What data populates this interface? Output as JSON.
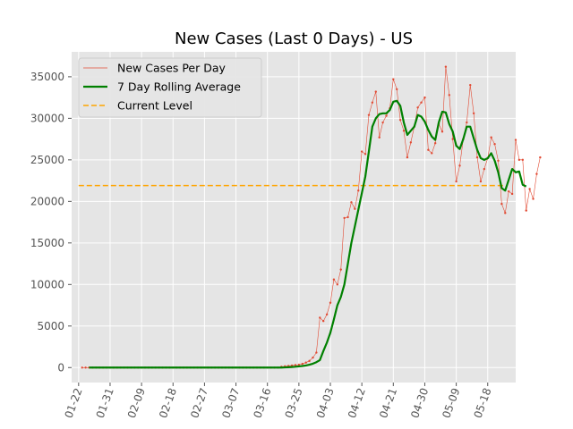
{
  "chart_data": {
    "type": "line",
    "title": "New Cases (Last 0 Days) - US",
    "xlabel": "",
    "ylabel": "",
    "start_date": "01-22",
    "x_tick_labels": [
      "01-22",
      "01-31",
      "02-09",
      "02-18",
      "02-27",
      "03-07",
      "03-16",
      "03-25",
      "04-03",
      "04-12",
      "04-21",
      "04-30",
      "05-09",
      "05-18"
    ],
    "y_ticks": [
      0,
      5000,
      10000,
      15000,
      20000,
      25000,
      30000,
      35000
    ],
    "y_tick_labels": [
      "0",
      "5000",
      "10000",
      "15000",
      "20000",
      "25000",
      "30000",
      "35000"
    ],
    "xlim": [
      -2,
      125
    ],
    "ylim": [
      -1800,
      38000
    ],
    "grid": true,
    "legend_position": "top-left",
    "background": "#e5e5e5",
    "series": [
      {
        "name": "New Cases Per Day",
        "color": "#e24a33",
        "style": "thin-line-with-dots",
        "x_start": 1,
        "values": [
          0,
          0,
          0,
          0,
          0,
          0,
          0,
          0,
          0,
          0,
          0,
          0,
          0,
          0,
          0,
          0,
          0,
          0,
          0,
          0,
          0,
          0,
          0,
          0,
          0,
          0,
          0,
          0,
          0,
          0,
          0,
          0,
          0,
          0,
          0,
          0,
          0,
          0,
          0,
          0,
          0,
          0,
          0,
          0,
          0,
          0,
          0,
          0,
          0,
          0,
          0,
          0,
          0,
          0,
          0,
          0,
          0,
          100,
          150,
          200,
          250,
          300,
          350,
          450,
          600,
          800,
          1200,
          1800,
          6000,
          5600,
          6400,
          7800,
          10600,
          10000,
          11800,
          18000,
          18100,
          19900,
          19100,
          21300,
          26000,
          25700,
          30400,
          31900,
          33200,
          27700,
          29500,
          30300,
          31200,
          34700,
          33500,
          29800,
          28500,
          25300,
          27100,
          29000,
          31300,
          31900,
          32500,
          26200,
          25800,
          27000,
          29300,
          28400,
          36200,
          32800,
          27500,
          22400,
          24300,
          27500,
          29500,
          34000,
          30600,
          25300,
          22400,
          23900,
          25200,
          27700,
          26900,
          24900,
          19700,
          18600,
          21200,
          20900,
          27400,
          25000,
          25000,
          18900,
          21500,
          20300,
          23300,
          25300
        ]
      },
      {
        "name": "7 Day Rolling Average",
        "color": "#008000",
        "style": "thick-line",
        "x_start": 3,
        "values": [
          0,
          0,
          0,
          0,
          0,
          0,
          0,
          0,
          0,
          0,
          0,
          0,
          0,
          0,
          0,
          0,
          0,
          0,
          0,
          0,
          0,
          0,
          0,
          0,
          0,
          0,
          0,
          0,
          0,
          0,
          0,
          0,
          0,
          0,
          0,
          0,
          0,
          0,
          0,
          0,
          0,
          0,
          0,
          0,
          0,
          0,
          0,
          0,
          0,
          0,
          0,
          0,
          0,
          0,
          0,
          0,
          20,
          40,
          70,
          100,
          140,
          190,
          250,
          340,
          470,
          650,
          900,
          2000,
          3000,
          4200,
          5800,
          7500,
          8500,
          10000,
          12500,
          15000,
          17000,
          19000,
          21000,
          23000,
          26000,
          29000,
          30000,
          30500,
          30600,
          30600,
          31000,
          32000,
          32100,
          31500,
          29500,
          28000,
          28500,
          29000,
          30400,
          30200,
          29600,
          28600,
          27800,
          27400,
          29500,
          30800,
          30700,
          29300,
          28400,
          26700,
          26300,
          27500,
          29000,
          29000,
          27600,
          26200,
          25200,
          25000,
          25200,
          25800,
          24900,
          23500,
          21600,
          21300,
          22600,
          23900,
          23500,
          23600,
          22000,
          21800
        ]
      }
    ],
    "reference_line": {
      "name": "Current Level",
      "color": "#ffa500",
      "style": "dashed",
      "value": 21900,
      "x_from": 0,
      "x_to": 122
    }
  }
}
